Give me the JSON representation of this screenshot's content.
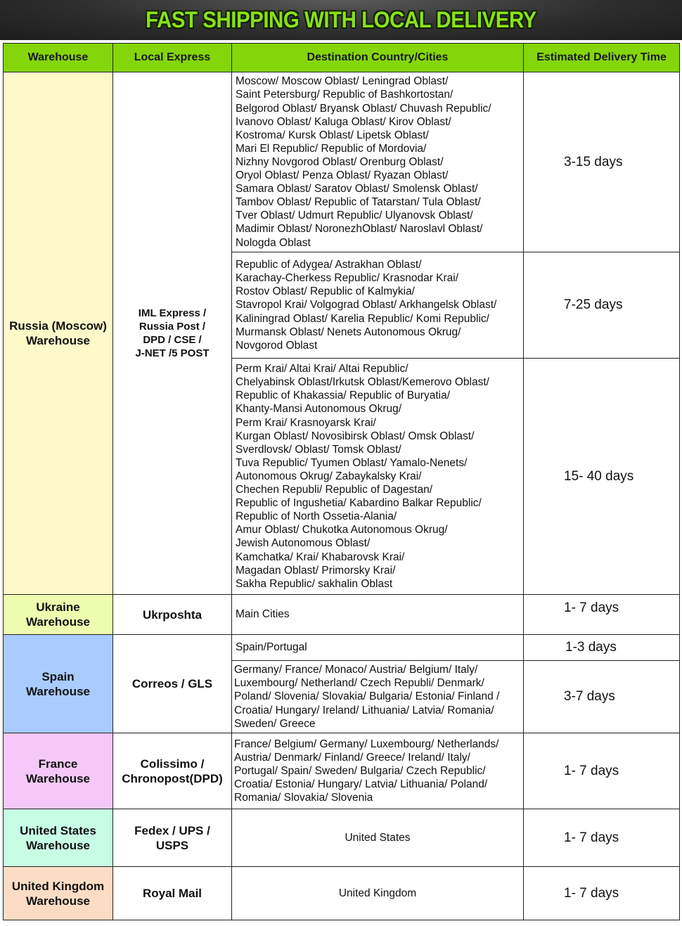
{
  "banner": {
    "title": "FAST SHIPPING WITH LOCAL DELIVERY"
  },
  "columns": [
    "Warehouse",
    "Local Express",
    "Destination Country/Cities",
    "Estimated Delivery Time"
  ],
  "colors": {
    "header": "#84d60a",
    "russia": "#fdf9c9",
    "ukraine": "#eefcb0",
    "spain": "#a9cbff",
    "france": "#f5c8f9",
    "us": "#c7fce5",
    "uk": "#fcdcc4"
  },
  "rows": {
    "russia": {
      "warehouse": "Russia (Moscow)\nWarehouse",
      "express": "IML Express /\nRussia Post /\nDPD / CSE /\nJ-NET /5 POST",
      "groups": [
        {
          "dest": "Moscow/ Moscow Oblast/ Leningrad Oblast/\nSaint Petersburg/ Republic of Bashkortostan/\nBelgorod Oblast/ Bryansk Oblast/ Chuvash Republic/\nIvanovo Oblast/ Kaluga Oblast/ Kirov Oblast/\nKostroma/ Kursk Oblast/ Lipetsk Oblast/\nMari El  Republic/ Republic of Mordovia/\nNizhny Novgorod Oblast/ Orenburg Oblast/\nOryol Oblast/ Penza Oblast/ Ryazan Oblast/\nSamara Oblast/ Saratov Oblast/ Smolensk Oblast/\nTambov Oblast/ Republic of Tatarstan/ Tula Oblast/\nTver Oblast/ Udmurt Republic/ Ulyanovsk Oblast/\nMadimir Oblast/ NoronezhOblast/ Naroslavl Oblast/\nNologda Oblast",
          "time": "3-15 days"
        },
        {
          "dest": "Republic of Adygea/ Astrakhan Oblast/\nKarachay-Cherkess Republic/ Krasnodar Krai/\nRostov Oblast/ Republic of Kalmykia/\nStavropol Krai/ Volgograd Oblast/ Arkhangelsk Oblast/\nKaliningrad Oblast/ Karelia Republic/ Komi Republic/\nMurmansk Oblast/ Nenets Autonomous Okrug/\nNovgorod Oblast",
          "time": "7-25 days"
        },
        {
          "dest": "Perm Krai/ Altai Krai/ Altai Republic/\nChelyabinsk Oblast/Irkutsk Oblast/Kemerovo Oblast/\nRepublic of Khakassia/ Republic of Buryatia/\nKhanty-Mansi Autonomous Okrug/\nPerm Krai/ Krasnoyarsk Krai/\nKurgan Oblast/ Novosibirsk Oblast/ Omsk Oblast/\nSverdlovsk/ Oblast/ Tomsk Oblast/\nTuva Republic/ Tyumen Oblast/ Yamalo-Nenets/\nAutonomous Okrug/ Zabaykalsky Krai/\nChechen Republi/ Republic of Dagestan/\nRepublic of Ingushetia/ Kabardino Balkar Republic/\nRepublic of North Ossetia-Alania/\nAmur Oblast/ Chukotka Autonomous Okrug/\nJewish Autonomous Oblast/\nKamchatka/ Krai/ Khabarovsk Krai/\nMagadan Oblast/ Primorsky Krai/\nSakha Republic/ sakhalin Oblast",
          "time": "15- 40 days"
        }
      ]
    },
    "ukraine": {
      "warehouse": "Ukraine\nWarehouse",
      "express": "Ukrposhta",
      "dest": "Main Cities",
      "time": "1- 7 days"
    },
    "spain": {
      "warehouse": "Spain\nWarehouse",
      "express": "Correos / GLS",
      "groups": [
        {
          "dest": "Spain/Portugal",
          "time": "1-3 days"
        },
        {
          "dest": "Germany/ France/ Monaco/ Austria/ Belgium/ Italy/\nLuxembourg/ Netherland/ Czech Republi/ Denmark/\nPoland/ Slovenia/ Slovakia/ Bulgaria/ Estonia/ Finland /\nCroatia/ Hungary/ Ireland/ Lithuania/ Latvia/ Romania/\nSweden/ Greece",
          "time": "3-7 days"
        }
      ]
    },
    "france": {
      "warehouse": "France\nWarehouse",
      "express": "Colissimo /\nChronopost(DPD)",
      "dest": "France/ Belgium/ Germany/ Luxembourg/ Netherlands/\nAustria/ Denmark/ Finland/ Greece/ Ireland/ Italy/\nPortugal/ Spain/ Sweden/ Bulgaria/ Czech Republic/\nCroatia/ Estonia/ Hungary/ Latvia/ Lithuania/ Poland/\nRomania/ Slovakia/ Slovenia",
      "time": "1- 7 days"
    },
    "us": {
      "warehouse": "United States\nWarehouse",
      "express": "Fedex / UPS /\nUSPS",
      "dest": "United States",
      "time": "1- 7 days"
    },
    "uk": {
      "warehouse": "United Kingdom\nWarehouse",
      "express": "Royal Mail",
      "dest": "United Kingdom",
      "time": "1- 7 days"
    }
  }
}
